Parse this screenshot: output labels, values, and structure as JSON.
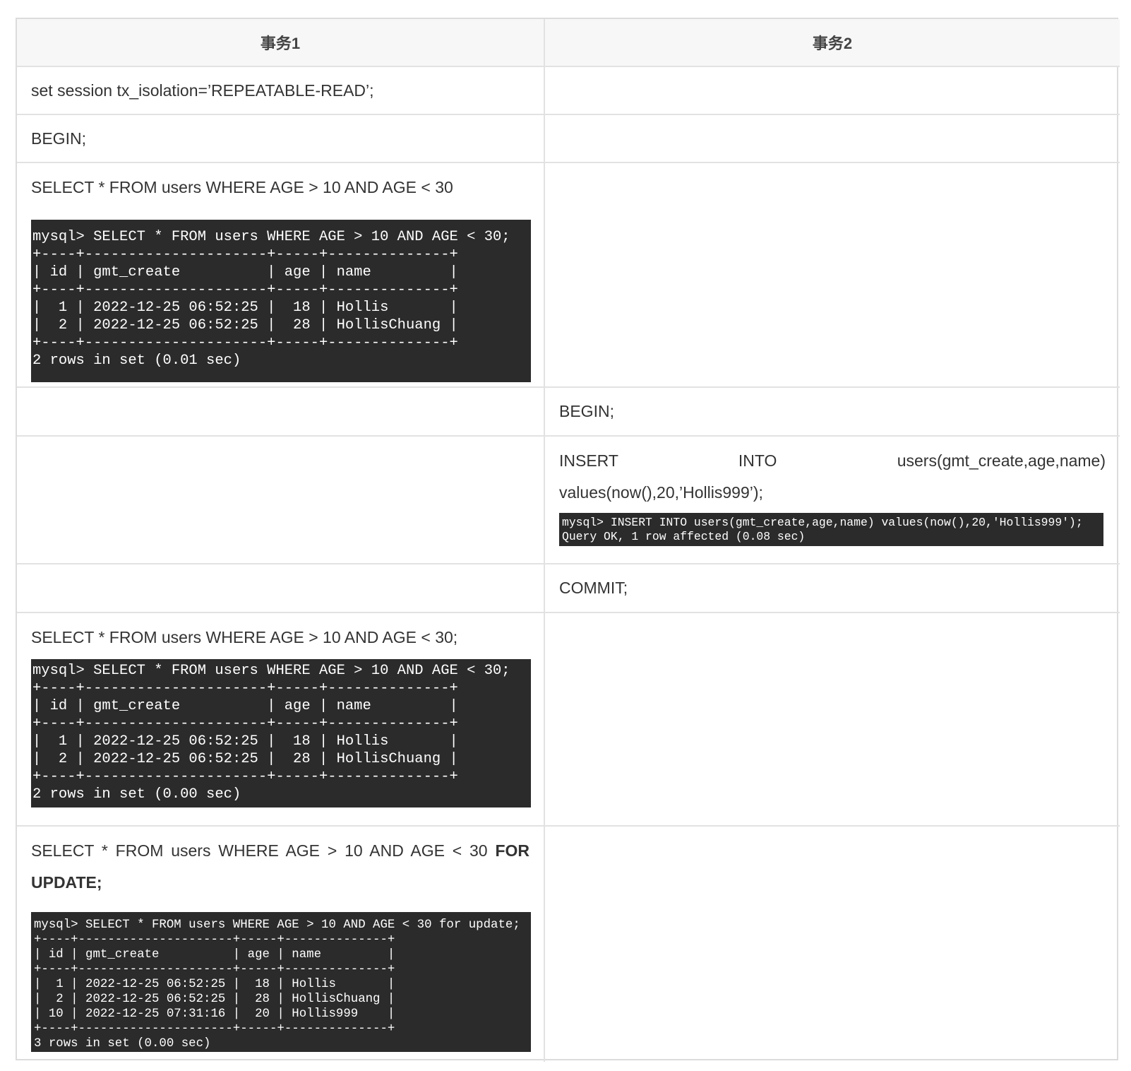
{
  "headers": [
    "事务1",
    "事务2"
  ],
  "rows": {
    "r1": {
      "t1": "set session tx_isolation=’REPEATABLE-READ’;"
    },
    "r2": {
      "t1": "BEGIN;"
    },
    "r3": {
      "t1": "SELECT * FROM users WHERE AGE > 10 AND AGE < 30",
      "terminal": [
        "mysql> SELECT * FROM users WHERE AGE > 10 AND AGE < 30;",
        "+----+---------------------+-----+--------------+",
        "| id | gmt_create          | age | name         |",
        "+----+---------------------+-----+--------------+",
        "|  1 | 2022-12-25 06:52:25 |  18 | Hollis       |",
        "|  2 | 2022-12-25 06:52:25 |  28 | HollisChuang |",
        "+----+---------------------+-----+--------------+",
        "2 rows in set (0.01 sec)"
      ]
    },
    "r4": {
      "t2": "BEGIN;"
    },
    "r5": {
      "t2_words": [
        "INSERT",
        "INTO",
        "users(gmt_create,age,name)"
      ],
      "t2_line2": "values(now(),20,’Hollis999’);",
      "terminal": [
        "mysql> INSERT INTO users(gmt_create,age,name) values(now(),20,'Hollis999');",
        "Query OK, 1 row affected (0.08 sec)"
      ]
    },
    "r6": {
      "t2": "COMMIT;"
    },
    "r7": {
      "t1": "SELECT * FROM users WHERE AGE > 10 AND AGE < 30;",
      "terminal": [
        "mysql> SELECT * FROM users WHERE AGE > 10 AND AGE < 30;",
        "+----+---------------------+-----+--------------+",
        "| id | gmt_create          | age | name         |",
        "+----+---------------------+-----+--------------+",
        "|  1 | 2022-12-25 06:52:25 |  18 | Hollis       |",
        "|  2 | 2022-12-25 06:52:25 |  28 | HollisChuang |",
        "+----+---------------------+-----+--------------+",
        "2 rows in set (0.00 sec)"
      ]
    },
    "r8": {
      "t1_normal": "SELECT * FROM users WHERE AGE > 10 AND AGE < 30",
      "t1_bold": "FOR",
      "t1_line2": "UPDATE;",
      "terminal": [
        "mysql> SELECT * FROM users WHERE AGE > 10 AND AGE < 30 for update;",
        "+----+---------------------+-----+--------------+",
        "| id | gmt_create          | age | name         |",
        "+----+---------------------+-----+--------------+",
        "|  1 | 2022-12-25 06:52:25 |  18 | Hollis       |",
        "|  2 | 2022-12-25 06:52:25 |  28 | HollisChuang |",
        "| 10 | 2022-12-25 07:31:16 |  20 | Hollis999    |",
        "+----+---------------------+-----+--------------+",
        "3 rows in set (0.00 sec)"
      ]
    }
  }
}
